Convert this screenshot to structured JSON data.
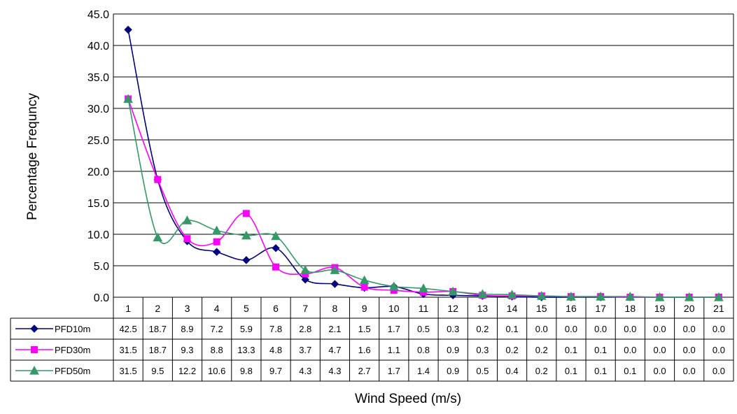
{
  "chart_data": {
    "type": "line",
    "title": "",
    "xlabel": "Wind Speed (m/s)",
    "ylabel": "Percentage Frequncy",
    "ylim": [
      0,
      45
    ],
    "yticks": [
      "0.0",
      "5.0",
      "10.0",
      "15.0",
      "20.0",
      "25.0",
      "30.0",
      "35.0",
      "40.0",
      "45.0"
    ],
    "grid": true,
    "categories": [
      "1",
      "2",
      "3",
      "4",
      "5",
      "6",
      "7",
      "8",
      "9",
      "10",
      "11",
      "12",
      "13",
      "14",
      "15",
      "16",
      "17",
      "18",
      "19",
      "20",
      "21"
    ],
    "series": [
      {
        "name": "PFD10m",
        "color": "#000080",
        "marker": "diamond",
        "values": [
          42.5,
          18.7,
          8.9,
          7.2,
          5.9,
          7.8,
          2.8,
          2.1,
          1.5,
          1.7,
          0.5,
          0.3,
          0.2,
          0.1,
          0.0,
          0.0,
          0.0,
          0.0,
          0.0,
          0.0,
          0.0
        ],
        "labels": [
          "42.5",
          "18.7",
          "8.9",
          "7.2",
          "5.9",
          "7.8",
          "2.8",
          "2.1",
          "1.5",
          "1.7",
          "0.5",
          "0.3",
          "0.2",
          "0.1",
          "0.0",
          "0.0",
          "0.0",
          "0.0",
          "0.0",
          "0.0",
          "0.0"
        ]
      },
      {
        "name": "PFD30m",
        "color": "#FF00FF",
        "marker": "square",
        "values": [
          31.5,
          18.7,
          9.3,
          8.8,
          13.3,
          4.8,
          3.7,
          4.7,
          1.6,
          1.1,
          0.8,
          0.9,
          0.3,
          0.2,
          0.2,
          0.1,
          0.1,
          0.0,
          0.0,
          0.0,
          0.0
        ],
        "labels": [
          "31.5",
          "18.7",
          "9.3",
          "8.8",
          "13.3",
          "4.8",
          "3.7",
          "4.7",
          "1.6",
          "1.1",
          "0.8",
          "0.9",
          "0.3",
          "0.2",
          "0.2",
          "0.1",
          "0.1",
          "0.0",
          "0.0",
          "0.0",
          "0.0"
        ]
      },
      {
        "name": "PFD50m",
        "color": "#339966",
        "marker": "triangle",
        "values": [
          31.5,
          9.5,
          12.2,
          10.6,
          9.8,
          9.7,
          4.3,
          4.3,
          2.7,
          1.7,
          1.4,
          0.9,
          0.5,
          0.4,
          0.2,
          0.1,
          0.1,
          0.1,
          0.0,
          0.0,
          0.0
        ],
        "labels": [
          "31.5",
          "9.5",
          "12.2",
          "10.6",
          "9.8",
          "9.7",
          "4.3",
          "4.3",
          "2.7",
          "1.7",
          "1.4",
          "0.9",
          "0.5",
          "0.4",
          "0.2",
          "0.1",
          "0.1",
          "0.1",
          "0.0",
          "0.0",
          "0.0"
        ]
      }
    ]
  }
}
